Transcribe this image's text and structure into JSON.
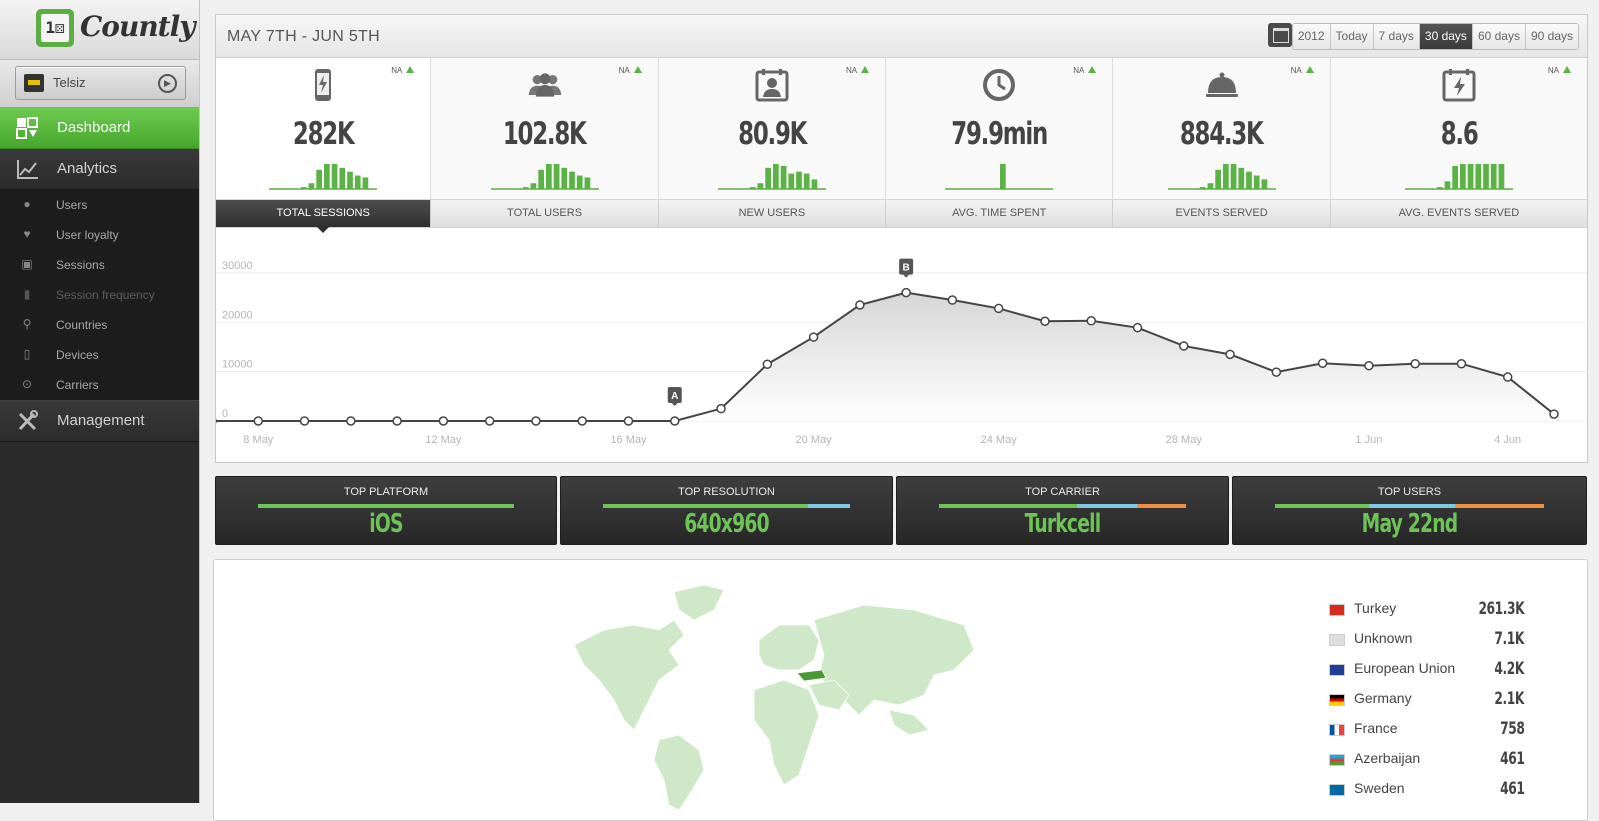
{
  "app": {
    "logo_text": "Countly",
    "selected_app": "Telsiz"
  },
  "sidebar": {
    "dashboard": "Dashboard",
    "analytics": "Analytics",
    "analytics_items": [
      {
        "label": "Users",
        "icon": "user-icon"
      },
      {
        "label": "User loyalty",
        "icon": "heart-icon"
      },
      {
        "label": "Sessions",
        "icon": "session-icon"
      },
      {
        "label": "Session frequency",
        "icon": "bar-chart-icon",
        "disabled": true
      },
      {
        "label": "Countries",
        "icon": "map-pin-icon"
      },
      {
        "label": "Devices",
        "icon": "device-icon"
      },
      {
        "label": "Carriers",
        "icon": "antenna-icon"
      }
    ],
    "management": "Management"
  },
  "header": {
    "date_range": "MAY 7TH - JUN 5TH",
    "periods": [
      "2012",
      "Today",
      "7 days",
      "30 days",
      "60 days",
      "90 days"
    ],
    "active_period": "30 days"
  },
  "stats": [
    {
      "value": "282K",
      "badge": "NA",
      "tab": "TOTAL SESSIONS",
      "icon": "phone-bolt-icon",
      "spark": [
        0,
        0,
        0,
        0,
        1,
        3,
        10,
        13,
        13,
        11,
        9,
        7,
        6,
        0
      ]
    },
    {
      "value": "102.8K",
      "badge": "NA",
      "tab": "TOTAL USERS",
      "icon": "users-icon",
      "spark": [
        0,
        0,
        0,
        0,
        1,
        3,
        10,
        13,
        13,
        11,
        9,
        7,
        6,
        0
      ]
    },
    {
      "value": "80.9K",
      "badge": "NA",
      "tab": "NEW USERS",
      "icon": "user-badge-icon",
      "spark": [
        0,
        0,
        0,
        0,
        1,
        3,
        11,
        13,
        12,
        8,
        9,
        8,
        5,
        0
      ]
    },
    {
      "value": "79.9min",
      "badge": "NA",
      "tab": "AVG. TIME SPENT",
      "icon": "clock-icon",
      "spark": [
        0,
        0,
        0,
        0,
        0,
        0,
        0,
        13,
        0,
        0,
        0,
        0,
        0,
        0
      ]
    },
    {
      "value": "884.3K",
      "badge": "NA",
      "tab": "EVENTS SERVED",
      "icon": "bell-icon",
      "spark": [
        0,
        0,
        0,
        0,
        1,
        3,
        10,
        13,
        13,
        11,
        9,
        7,
        5,
        0
      ]
    },
    {
      "value": "8.6",
      "badge": "NA",
      "tab": "AVG. EVENTS SERVED",
      "icon": "calendar-bolt-icon",
      "spark": [
        0,
        0,
        0,
        0,
        1,
        4,
        12,
        13,
        13,
        13,
        13,
        13,
        13,
        0
      ]
    }
  ],
  "chart_data": {
    "type": "line",
    "title": "",
    "xlabel": "",
    "ylabel": "",
    "x": [
      "7 May",
      "8 May",
      "9 May",
      "10 May",
      "11 May",
      "12 May",
      "13 May",
      "14 May",
      "15 May",
      "16 May",
      "17 May",
      "18 May",
      "19 May",
      "20 May",
      "21 May",
      "22 May",
      "23 May",
      "24 May",
      "25 May",
      "26 May",
      "27 May",
      "28 May",
      "29 May",
      "30 May",
      "31 May",
      "1 Jun",
      "2 Jun",
      "3 Jun",
      "4 Jun",
      "5 Jun"
    ],
    "series": [
      {
        "values": [
          0,
          0,
          0,
          0,
          0,
          0,
          0,
          0,
          0,
          0,
          0,
          2500,
          11500,
          17000,
          23500,
          26000,
          24500,
          22800,
          20200,
          20300,
          18900,
          15200,
          13500,
          9900,
          11700,
          11200,
          11600,
          11600,
          8900,
          1400
        ]
      }
    ],
    "x_tick_labels": [
      "8 May",
      "12 May",
      "16 May",
      "20 May",
      "24 May",
      "28 May",
      "1 Jun",
      "4 Jun"
    ],
    "y_tick_labels": [
      "0",
      "10000",
      "20000",
      "30000"
    ],
    "ylim": [
      0,
      32000
    ],
    "annotations": [
      {
        "label": "A",
        "x": "17 May"
      },
      {
        "label": "B",
        "x": "22 May"
      }
    ],
    "grid": true
  },
  "top_tiles": [
    {
      "title": "TOP PLATFORM",
      "value": "iOS",
      "bar": [
        {
          "pct": 100,
          "color": "#6dc356"
        }
      ]
    },
    {
      "title": "TOP RESOLUTION",
      "value": "640x960",
      "bar": [
        {
          "pct": 83,
          "color": "#6dc356"
        },
        {
          "pct": 17,
          "color": "#7fc8e6"
        }
      ]
    },
    {
      "title": "TOP CARRIER",
      "value": "Turkcell",
      "bar": [
        {
          "pct": 56,
          "color": "#6dc356"
        },
        {
          "pct": 24,
          "color": "#7fc8e6"
        },
        {
          "pct": 20,
          "color": "#ef8e3e"
        }
      ]
    },
    {
      "title": "TOP USERS",
      "value": "May 22nd",
      "bar": [
        {
          "pct": 35,
          "color": "#6dc356"
        },
        {
          "pct": 32,
          "color": "#7fc8e6"
        },
        {
          "pct": 33,
          "color": "#ef8e3e"
        }
      ]
    }
  ],
  "countries": [
    {
      "name": "Turkey",
      "value": "261.3K",
      "flag": "turkey-flag-icon"
    },
    {
      "name": "Unknown",
      "value": "7.1K",
      "flag": "unknown-flag-icon"
    },
    {
      "name": "European Union",
      "value": "4.2K",
      "flag": "eu-flag-icon"
    },
    {
      "name": "Germany",
      "value": "2.1K",
      "flag": "germany-flag-icon"
    },
    {
      "name": "France",
      "value": "758",
      "flag": "france-flag-icon"
    },
    {
      "name": "Azerbaijan",
      "value": "461",
      "flag": "azerbaijan-flag-icon"
    },
    {
      "name": "Sweden",
      "value": "461",
      "flag": "sweden-flag-icon"
    }
  ],
  "colors": {
    "accent_green": "#5bae43",
    "dark": "#2b2b2b",
    "map_land": "#cfe8c7",
    "map_highlight": "#4a9a34"
  }
}
